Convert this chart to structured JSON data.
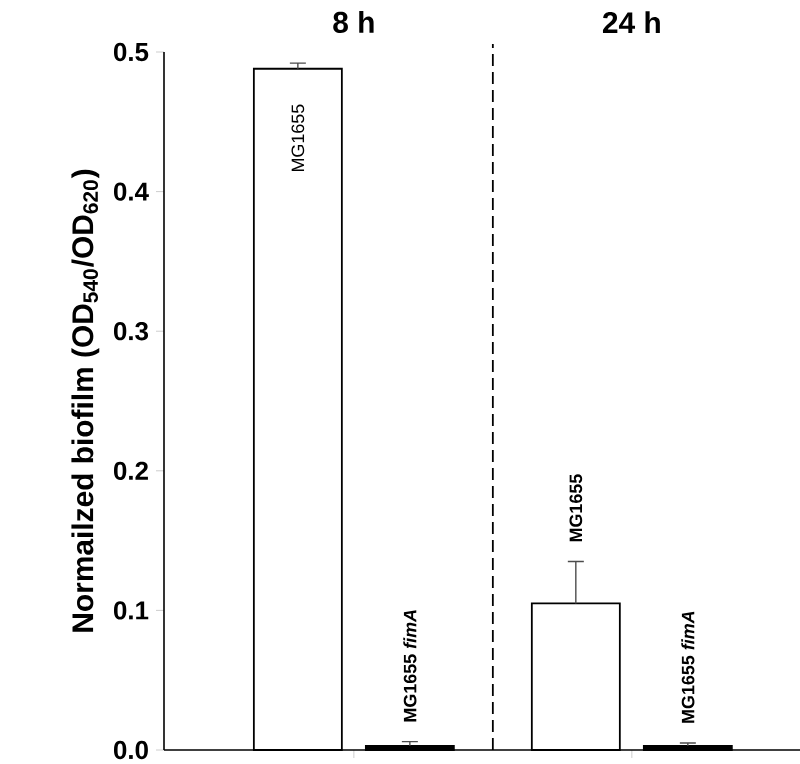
{
  "chart_data": {
    "type": "bar",
    "ylabel": "Normailzed biofilm (OD$_{540}$/OD$_{620}$)",
    "categories": [
      "8 h",
      "24 h"
    ],
    "series": [
      {
        "name": "MG1655",
        "color": "#ffffff",
        "values": [
          0.488,
          0.105
        ],
        "errors": [
          0.004,
          0.03
        ]
      },
      {
        "name": "MG1655 *fimA*",
        "color": "#000000",
        "values": [
          0.003,
          0.003
        ],
        "errors": [
          0.003,
          0.002
        ]
      }
    ],
    "ylim": [
      0,
      0.5
    ],
    "yticks": [
      {
        "value": 0,
        "label": "0.0"
      },
      {
        "value": 0.1,
        "label": "0.1"
      },
      {
        "value": 0.2,
        "label": "0.2"
      },
      {
        "value": 0.3,
        "label": "0.3"
      },
      {
        "value": 0.4,
        "label": "0.4"
      },
      {
        "value": 0.5,
        "label": "0.5"
      }
    ],
    "grid": false
  }
}
